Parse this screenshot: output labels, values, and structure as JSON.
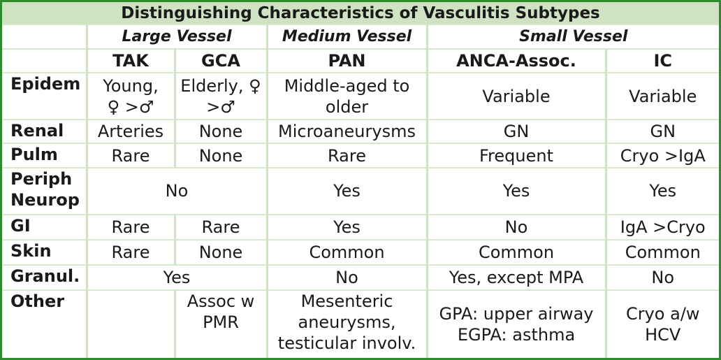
{
  "title": "Distinguishing Characteristics of Vasculitis Subtypes",
  "vessel_sizes": {
    "large": "Large Vessel",
    "medium": "Medium Vessel",
    "small": "Small Vessel"
  },
  "columns": [
    "TAK",
    "GCA",
    "PAN",
    "ANCA-Assoc.",
    "IC"
  ],
  "rows": {
    "epidem": {
      "label": "Epidem",
      "tak": [
        "Young,",
        "♀ >♂"
      ],
      "gca": [
        "Elderly, ♀",
        ">♂"
      ],
      "pan": [
        "Middle-aged to",
        "older"
      ],
      "anca": "Variable",
      "ic": "Variable"
    },
    "renal": {
      "label": "Renal",
      "tak": "Arteries",
      "gca": "None",
      "pan": "Microaneurysms",
      "anca": "GN",
      "ic": "GN"
    },
    "pulm": {
      "label": "Pulm",
      "tak": "Rare",
      "gca": "None",
      "pan": "Rare",
      "anca": "Frequent",
      "ic": "Cryo >IgA"
    },
    "periph": {
      "label": [
        "Periph",
        "Neurop"
      ],
      "tak_gca": "No",
      "pan": "Yes",
      "anca": "Yes",
      "ic": "Yes"
    },
    "gi": {
      "label": "GI",
      "tak": "Rare",
      "gca": "Rare",
      "pan": "Yes",
      "anca": "No",
      "ic": "IgA >Cryo"
    },
    "skin": {
      "label": "Skin",
      "tak": "Rare",
      "gca": "None",
      "pan": "Common",
      "anca": "Common",
      "ic": "Common"
    },
    "granul": {
      "label": "Granul.",
      "tak_gca": "Yes",
      "pan": "No",
      "anca": "Yes, except MPA",
      "ic": "No"
    },
    "other": {
      "label": "Other",
      "tak": "",
      "gca": [
        "Assoc w",
        "PMR"
      ],
      "pan": [
        "Mesenteric",
        "aneurysms,",
        "testicular involv."
      ],
      "anca": [
        "GPA: upper airway",
        "EGPA: asthma"
      ],
      "ic": [
        "Cryo a/w",
        "HCV"
      ]
    }
  },
  "colors": {
    "border": "#2e8b2e",
    "title_bg": "#cfe3c3",
    "grid": "#cfe6c4",
    "text": "#1a1a1a"
  }
}
